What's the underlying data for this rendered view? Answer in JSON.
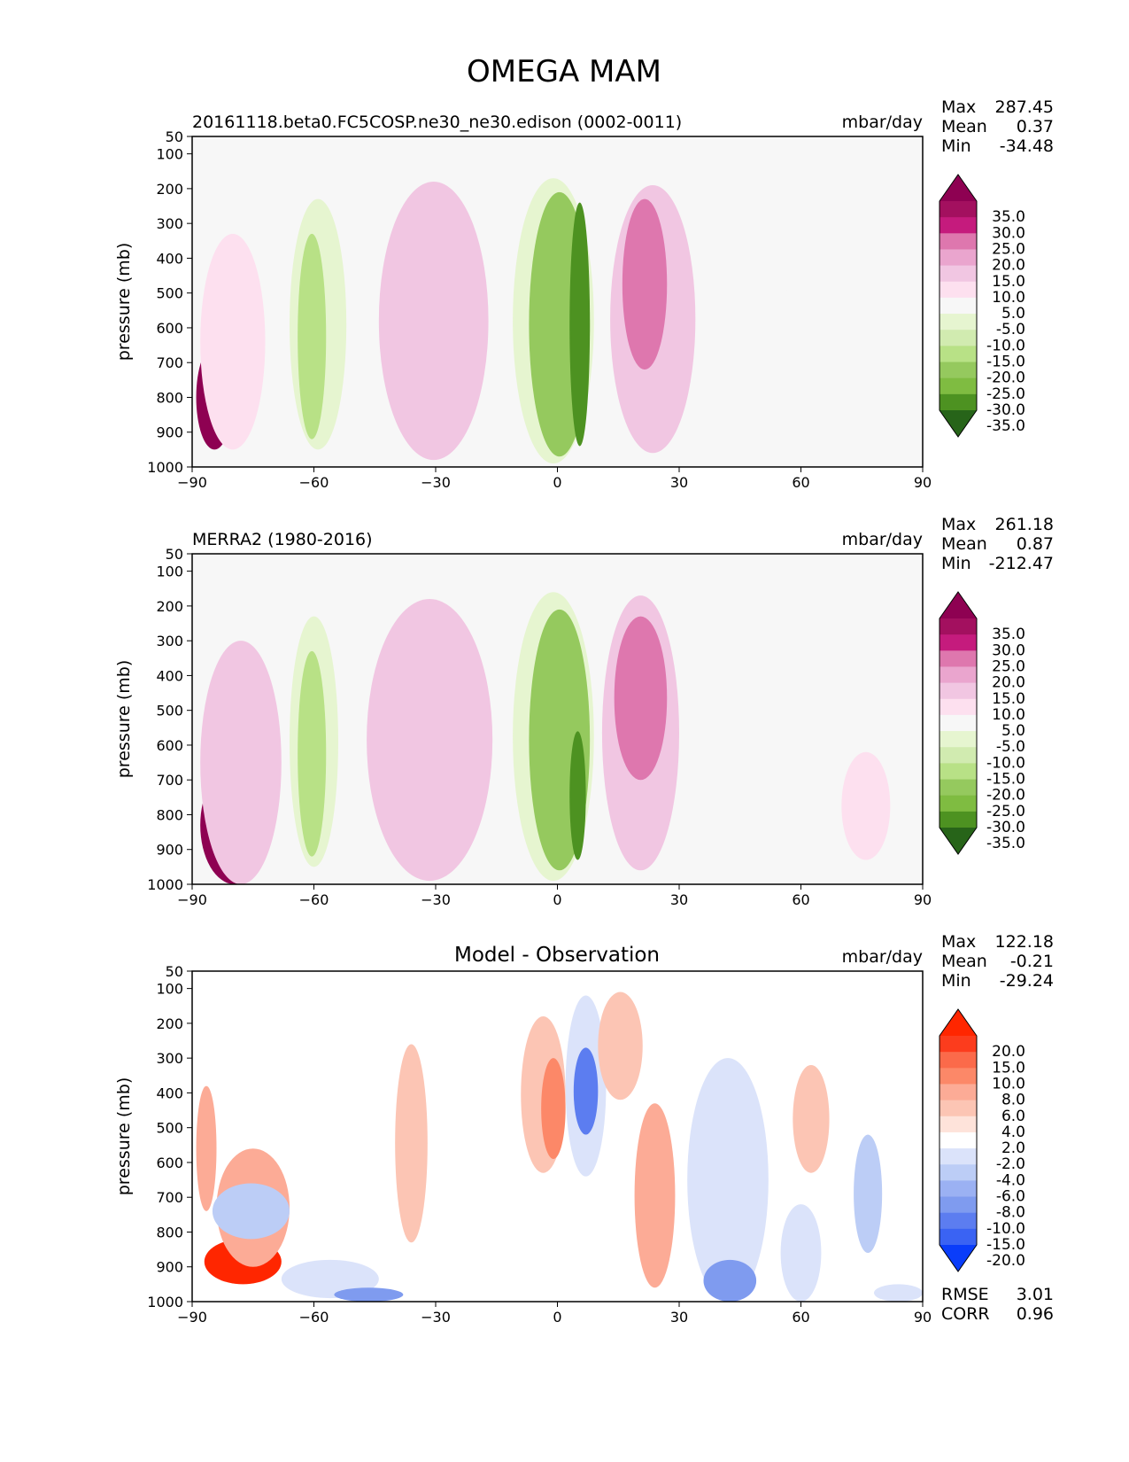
{
  "figure": {
    "title": "OMEGA MAM"
  },
  "chart_data": [
    {
      "type": "heatmap",
      "subtitle": "20161118.beta0.FC5COSP.ne30_ne30.edison (0002-0011)",
      "title": "",
      "units": "mbar/day",
      "xlabel": "",
      "ylabel": "pressure (mb)",
      "xlim": [
        -90,
        90
      ],
      "ylim": [
        1000,
        50
      ],
      "x_ticks": [
        "−90",
        "−60",
        "−30",
        "0",
        "30",
        "60",
        "90"
      ],
      "y_ticks": [
        "50",
        "100",
        "200",
        "300",
        "400",
        "500",
        "600",
        "700",
        "800",
        "900",
        "1000"
      ],
      "stats": [
        {
          "label": "Max",
          "value": "287.45"
        },
        {
          "label": "Mean",
          "value": "0.37"
        },
        {
          "label": "Min",
          "value": "-34.48"
        }
      ],
      "colorbar": {
        "levels": [
          "35.0",
          "30.0",
          "25.0",
          "20.0",
          "15.0",
          "10.0",
          "5.0",
          "-5.0",
          "-10.0",
          "-15.0",
          "-20.0",
          "-25.0",
          "-30.0",
          "-35.0"
        ],
        "colors": [
          "#8e0152",
          "#a3105f",
          "#c51b7d",
          "#de77ae",
          "#eaa5ce",
          "#f1c6e2",
          "#fde0ef",
          "#f7f7f7",
          "#e6f5d0",
          "#d1ebb0",
          "#b8e186",
          "#95c95e",
          "#7fbc41",
          "#4d9221",
          "#276419"
        ],
        "extend": "both"
      },
      "features": [
        {
          "lat": [
            -89,
            -80
          ],
          "p": [
            650,
            950
          ],
          "level": 35
        },
        {
          "lat": [
            -88,
            -72
          ],
          "p": [
            330,
            950
          ],
          "level": 5
        },
        {
          "lat": [
            -66,
            -52
          ],
          "p": [
            230,
            950
          ],
          "level": -10
        },
        {
          "lat": [
            -64,
            -57
          ],
          "p": [
            330,
            920
          ],
          "level": -20
        },
        {
          "lat": [
            -44,
            -17
          ],
          "p": [
            180,
            980
          ],
          "level": 10
        },
        {
          "lat": [
            -11,
            9
          ],
          "p": [
            170,
            990
          ],
          "level": -10
        },
        {
          "lat": [
            -7,
            8
          ],
          "p": [
            210,
            970
          ],
          "level": -25
        },
        {
          "lat": [
            3,
            8
          ],
          "p": [
            240,
            940
          ],
          "level": -35
        },
        {
          "lat": [
            13,
            34
          ],
          "p": [
            190,
            960
          ],
          "level": 10
        },
        {
          "lat": [
            16,
            27
          ],
          "p": [
            230,
            720
          ],
          "level": 20
        },
        {
          "lat": [
            48,
            61
          ],
          "p": [
            480,
            990
          ],
          "level": -5
        }
      ]
    },
    {
      "type": "heatmap",
      "subtitle": "MERRA2 (1980-2016)",
      "title": "",
      "units": "mbar/day",
      "xlabel": "",
      "ylabel": "pressure (mb)",
      "xlim": [
        -90,
        90
      ],
      "ylim": [
        1000,
        50
      ],
      "x_ticks": [
        "−90",
        "−60",
        "−30",
        "0",
        "30",
        "60",
        "90"
      ],
      "y_ticks": [
        "50",
        "100",
        "200",
        "300",
        "400",
        "500",
        "600",
        "700",
        "800",
        "900",
        "1000"
      ],
      "stats": [
        {
          "label": "Max",
          "value": "261.18"
        },
        {
          "label": "Mean",
          "value": "0.87"
        },
        {
          "label": "Min",
          "value": "-212.47"
        }
      ],
      "colorbar": {
        "levels": [
          "35.0",
          "30.0",
          "25.0",
          "20.0",
          "15.0",
          "10.0",
          "5.0",
          "-5.0",
          "-10.0",
          "-15.0",
          "-20.0",
          "-25.0",
          "-30.0",
          "-35.0"
        ],
        "colors": [
          "#8e0152",
          "#a3105f",
          "#c51b7d",
          "#de77ae",
          "#eaa5ce",
          "#f1c6e2",
          "#fde0ef",
          "#f7f7f7",
          "#e6f5d0",
          "#d1ebb0",
          "#b8e186",
          "#95c95e",
          "#7fbc41",
          "#4d9221",
          "#276419"
        ],
        "extend": "both"
      },
      "features": [
        {
          "lat": [
            -88,
            -71
          ],
          "p": [
            660,
            1000
          ],
          "level": 35
        },
        {
          "lat": [
            -88,
            -68
          ],
          "p": [
            300,
            1000
          ],
          "level": 10
        },
        {
          "lat": [
            -66,
            -54
          ],
          "p": [
            230,
            950
          ],
          "level": -10
        },
        {
          "lat": [
            -64,
            -57
          ],
          "p": [
            330,
            920
          ],
          "level": -20
        },
        {
          "lat": [
            -47,
            -16
          ],
          "p": [
            180,
            990
          ],
          "level": 10
        },
        {
          "lat": [
            -11,
            9
          ],
          "p": [
            160,
            990
          ],
          "level": -10
        },
        {
          "lat": [
            -7,
            8
          ],
          "p": [
            210,
            960
          ],
          "level": -25
        },
        {
          "lat": [
            3,
            7
          ],
          "p": [
            560,
            930
          ],
          "level": -35
        },
        {
          "lat": [
            11,
            30
          ],
          "p": [
            170,
            960
          ],
          "level": 10
        },
        {
          "lat": [
            14,
            27
          ],
          "p": [
            230,
            700
          ],
          "level": 20
        },
        {
          "lat": [
            51,
            63
          ],
          "p": [
            400,
            980
          ],
          "level": -5
        },
        {
          "lat": [
            70,
            82
          ],
          "p": [
            620,
            930
          ],
          "level": 5
        }
      ]
    },
    {
      "type": "heatmap",
      "subtitle": "",
      "title": "Model - Observation",
      "units": "mbar/day",
      "xlabel": "",
      "ylabel": "pressure (mb)",
      "xlim": [
        -90,
        90
      ],
      "ylim": [
        1000,
        50
      ],
      "x_ticks": [
        "−90",
        "−60",
        "−30",
        "0",
        "30",
        "60",
        "90"
      ],
      "y_ticks": [
        "50",
        "100",
        "200",
        "300",
        "400",
        "500",
        "600",
        "700",
        "800",
        "900",
        "1000"
      ],
      "stats": [
        {
          "label": "Max",
          "value": "122.18"
        },
        {
          "label": "Mean",
          "value": "-0.21"
        },
        {
          "label": "Min",
          "value": "-29.24"
        }
      ],
      "metrics": [
        {
          "label": "RMSE",
          "value": "3.01"
        },
        {
          "label": "CORR",
          "value": "0.96"
        }
      ],
      "colorbar": {
        "levels": [
          "20.0",
          "15.0",
          "10.0",
          "8.0",
          "6.0",
          "4.0",
          "2.0",
          "-2.0",
          "-4.0",
          "-6.0",
          "-8.0",
          "-10.0",
          "-15.0",
          "-20.0"
        ],
        "colors": [
          "#ff2600",
          "#fc3c1d",
          "#fb6a4a",
          "#fc8868",
          "#fcab96",
          "#fcc5b4",
          "#fee3da",
          "#ffffff",
          "#dbe3fa",
          "#bccdf6",
          "#9bb1f3",
          "#7f9bef",
          "#5c7df0",
          "#3a63f3",
          "#0a3dfa"
        ],
        "extend": "both"
      },
      "features": [
        {
          "lat": [
            -89,
            -84
          ],
          "p": [
            380,
            740
          ],
          "level": 6
        },
        {
          "lat": [
            -87,
            -68
          ],
          "p": [
            820,
            950
          ],
          "level": 20
        },
        {
          "lat": [
            -84,
            -66
          ],
          "p": [
            560,
            900
          ],
          "level": 6
        },
        {
          "lat": [
            -85,
            -66
          ],
          "p": [
            660,
            820
          ],
          "level": -6
        },
        {
          "lat": [
            -68,
            -44
          ],
          "p": [
            880,
            990
          ],
          "level": -4
        },
        {
          "lat": [
            -55,
            -38
          ],
          "p": [
            960,
            1000
          ],
          "level": -10
        },
        {
          "lat": [
            -40,
            -32
          ],
          "p": [
            260,
            830
          ],
          "level": 4
        },
        {
          "lat": [
            -19,
            -12
          ],
          "p": [
            280,
            980
          ],
          "level": -2
        },
        {
          "lat": [
            -9,
            2
          ],
          "p": [
            180,
            630
          ],
          "level": 4
        },
        {
          "lat": [
            -4,
            2
          ],
          "p": [
            300,
            590
          ],
          "level": 8
        },
        {
          "lat": [
            2,
            12
          ],
          "p": [
            120,
            640
          ],
          "level": -4
        },
        {
          "lat": [
            4,
            10
          ],
          "p": [
            270,
            520
          ],
          "level": -15
        },
        {
          "lat": [
            10,
            21
          ],
          "p": [
            110,
            420
          ],
          "level": 4
        },
        {
          "lat": [
            19,
            29
          ],
          "p": [
            430,
            960
          ],
          "level": 6
        },
        {
          "lat": [
            32,
            52
          ],
          "p": [
            300,
            1000
          ],
          "level": -4
        },
        {
          "lat": [
            36,
            49
          ],
          "p": [
            880,
            1000
          ],
          "level": -10
        },
        {
          "lat": [
            55,
            65
          ],
          "p": [
            720,
            1000
          ],
          "level": -4
        },
        {
          "lat": [
            58,
            67
          ],
          "p": [
            320,
            630
          ],
          "level": 4
        },
        {
          "lat": [
            73,
            80
          ],
          "p": [
            520,
            860
          ],
          "level": -6
        },
        {
          "lat": [
            78,
            90
          ],
          "p": [
            950,
            1000
          ],
          "level": -4
        }
      ]
    }
  ]
}
